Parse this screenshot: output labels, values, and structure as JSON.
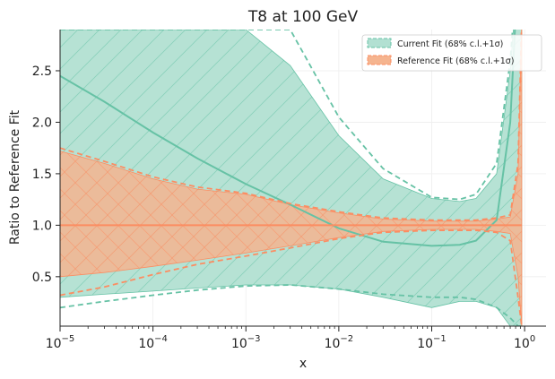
{
  "chart_data": {
    "type": "area",
    "title": "T8 at 100 GeV",
    "xlabel": "x",
    "ylabel": "Ratio to Reference Fit",
    "x_scale": "log",
    "xlim": [
      1e-05,
      1.7
    ],
    "ylim": [
      0.02,
      2.9
    ],
    "y_ticks": [
      0.5,
      1.0,
      1.5,
      2.0,
      2.5
    ],
    "y_tick_labels": [
      "0.5",
      "1.0",
      "1.5",
      "2.0",
      "2.5"
    ],
    "x_ticks": [
      1e-05,
      0.0001,
      0.001,
      0.01,
      0.1,
      1
    ],
    "x_tick_labels": [
      {
        "base": "10",
        "exp": "−5"
      },
      {
        "base": "10",
        "exp": "−4"
      },
      {
        "base": "10",
        "exp": "−3"
      },
      {
        "base": "10",
        "exp": "−2"
      },
      {
        "base": "10",
        "exp": "−1"
      },
      {
        "base": "10",
        "exp": "0"
      }
    ],
    "grid": true,
    "legend_position": "top-right",
    "colors": {
      "current": "#66c2a5",
      "current_fill": "#b2e0d2",
      "reference": "#fc8d62",
      "reference_fill": "#f5b48f"
    },
    "x": [
      1e-05,
      3e-05,
      0.0001,
      0.0003,
      0.001,
      0.003,
      0.01,
      0.03,
      0.1,
      0.2,
      0.3,
      0.5,
      0.7,
      0.85,
      0.93
    ],
    "series": [
      {
        "name": "Current Fit (68% c.l.+1σ)",
        "central": [
          2.45,
          2.2,
          1.9,
          1.65,
          1.4,
          1.2,
          0.97,
          0.84,
          0.8,
          0.81,
          0.85,
          1.05,
          2.0,
          3.5,
          5.0
        ],
        "band_upper": [
          2.9,
          2.9,
          2.9,
          2.9,
          2.9,
          2.55,
          1.87,
          1.45,
          1.26,
          1.23,
          1.26,
          1.5,
          2.5,
          3.5,
          5.0
        ],
        "band_lower": [
          0.3,
          0.33,
          0.36,
          0.39,
          0.42,
          0.42,
          0.38,
          0.3,
          0.2,
          0.26,
          0.26,
          0.2,
          0.02,
          0.02,
          0.02
        ],
        "sigma_upper": [
          2.9,
          2.9,
          2.9,
          2.9,
          2.9,
          2.9,
          2.05,
          1.55,
          1.27,
          1.25,
          1.3,
          1.6,
          2.6,
          3.6,
          5.0
        ],
        "sigma_lower": [
          0.2,
          0.26,
          0.32,
          0.37,
          0.41,
          0.42,
          0.38,
          0.33,
          0.3,
          0.3,
          0.28,
          0.2,
          0.1,
          0.02,
          0.02
        ]
      },
      {
        "name": "Reference Fit (68% c.l.+1σ)",
        "central": [
          1.0,
          1.0,
          1.0,
          1.0,
          1.0,
          1.0,
          1.0,
          1.0,
          1.0,
          1.0,
          1.0,
          1.0,
          1.0,
          1.0,
          1.0
        ],
        "band_upper": [
          1.72,
          1.6,
          1.45,
          1.35,
          1.3,
          1.2,
          1.12,
          1.06,
          1.04,
          1.04,
          1.04,
          1.06,
          1.08,
          1.5,
          3.0
        ],
        "band_lower": [
          0.5,
          0.54,
          0.6,
          0.66,
          0.73,
          0.8,
          0.88,
          0.94,
          0.96,
          0.96,
          0.96,
          0.94,
          0.92,
          0.5,
          0.02
        ],
        "sigma_upper": [
          1.75,
          1.62,
          1.47,
          1.37,
          1.31,
          1.21,
          1.13,
          1.07,
          1.05,
          1.05,
          1.05,
          1.07,
          1.1,
          1.6,
          3.0
        ],
        "sigma_lower": [
          0.32,
          0.4,
          0.52,
          0.62,
          0.7,
          0.78,
          0.87,
          0.93,
          0.95,
          0.95,
          0.95,
          0.93,
          0.85,
          0.3,
          0.02
        ]
      }
    ]
  }
}
